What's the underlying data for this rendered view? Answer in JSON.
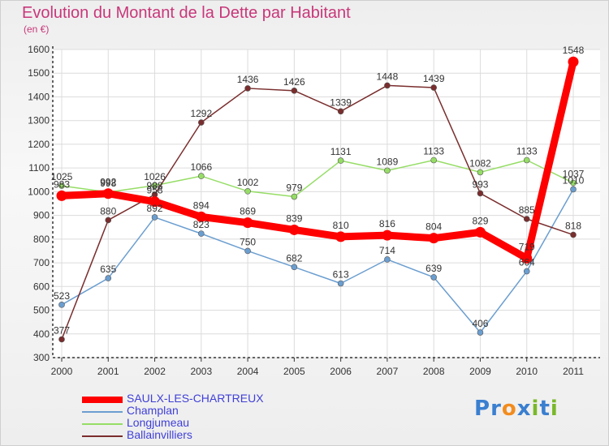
{
  "header": {
    "title": "Evolution du Montant de la Dette par Habitant",
    "subtitle": "(en €)"
  },
  "brand": {
    "name": "Proxiti",
    "letters": [
      "P",
      "r",
      "o",
      "x",
      "i",
      "t",
      "i"
    ],
    "letter_colors": [
      "#3a7fd0",
      "#3a7fd0",
      "#f28c1e",
      "#3a7fd0",
      "#79b82a",
      "#3a7fd0",
      "#79b82a"
    ]
  },
  "chart_data": {
    "type": "line",
    "title": "Evolution du Montant de la Dette par Habitant",
    "subtitle": "(en €)",
    "categories": [
      "2000",
      "2001",
      "2002",
      "2003",
      "2004",
      "2005",
      "2006",
      "2007",
      "2008",
      "2009",
      "2010",
      "2011"
    ],
    "ylim": [
      300,
      1600
    ],
    "yticks": [
      300,
      400,
      500,
      600,
      700,
      800,
      900,
      1000,
      1100,
      1200,
      1300,
      1400,
      1500,
      1600
    ],
    "grid": true,
    "legend_position": "bottom-left",
    "series": [
      {
        "name": "SAULX-LES-CHARTREUX",
        "color": "#ff0000",
        "emphasis": true,
        "values": [
          983,
          992,
          958,
          894,
          869,
          839,
          810,
          816,
          804,
          829,
          719,
          1548
        ]
      },
      {
        "name": "Champlan",
        "color": "#6b9ed0",
        "values": [
          523,
          635,
          892,
          823,
          750,
          682,
          613,
          714,
          639,
          406,
          664,
          1010
        ]
      },
      {
        "name": "Longjumeau",
        "color": "#96dd66",
        "values": [
          1025,
          998,
          1026,
          1066,
          1002,
          979,
          1131,
          1089,
          1133,
          1082,
          1133,
          1037
        ]
      },
      {
        "name": "Ballainvilliers",
        "color": "#7a2d2d",
        "values": [
          377,
          880,
          988,
          1292,
          1436,
          1426,
          1339,
          1448,
          1439,
          993,
          885,
          818
        ]
      }
    ]
  }
}
